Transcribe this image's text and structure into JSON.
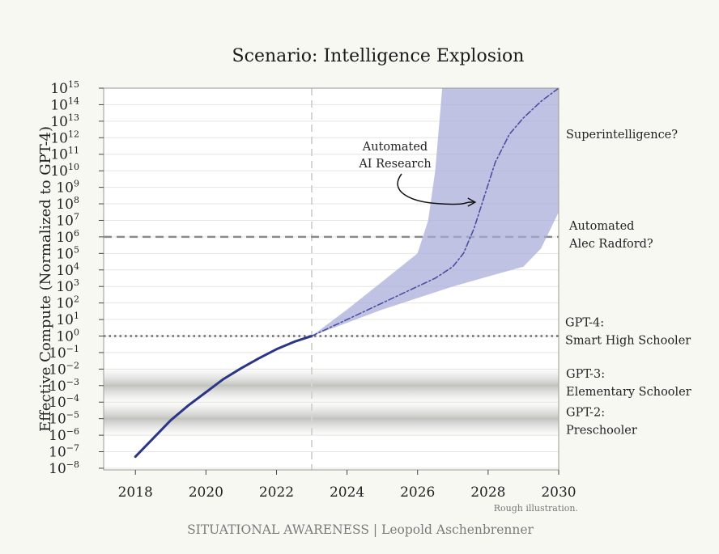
{
  "chart_data": {
    "type": "line",
    "title": "Scenario: Intelligence Explosion",
    "ylabel": "Effective Compute (Normalized to GPT-4)",
    "xlabel": "",
    "x_ticks": [
      "2018",
      "2020",
      "2022",
      "2024",
      "2026",
      "2028",
      "2030"
    ],
    "x_ticks_values": [
      2018,
      2020,
      2022,
      2024,
      2026,
      2028,
      2030
    ],
    "xlim": [
      2017.1,
      2030
    ],
    "y_scale": "log10",
    "y_ticks_exponents": [
      -8,
      -7,
      -6,
      -5,
      -4,
      -3,
      -2,
      -1,
      0,
      1,
      2,
      3,
      4,
      5,
      6,
      7,
      8,
      9,
      10,
      11,
      12,
      13,
      14,
      15
    ],
    "ylim_exponent": [
      -8.1,
      15
    ],
    "grid": "horizontal",
    "series": [
      {
        "style": "solid",
        "color": "#2b3686",
        "x": [
          2018,
          2018.5,
          2019,
          2019.5,
          2020,
          2020.5,
          2021,
          2021.5,
          2022,
          2022.5,
          2023
        ],
        "log10_y": [
          -7.3,
          -6.2,
          -5.1,
          -4.2,
          -3.4,
          -2.6,
          -1.95,
          -1.35,
          -0.8,
          -0.35,
          0
        ]
      },
      {
        "style": "dash-dot",
        "color": "#4b4fa0",
        "x": [
          2023,
          2024,
          2025,
          2026,
          2026.5,
          2027,
          2027.3,
          2027.6,
          2027.9,
          2028.2,
          2028.6,
          2029,
          2029.5,
          2030
        ],
        "log10_y": [
          0,
          1.0,
          2.0,
          3.0,
          3.5,
          4.2,
          5.0,
          6.5,
          8.5,
          10.5,
          12.2,
          13.2,
          14.2,
          15
        ]
      }
    ],
    "band": {
      "color": "#a8aad8",
      "x_upper": [
        2023,
        2024,
        2025,
        2026,
        2026.3,
        2026.5,
        2026.7
      ],
      "log10_upper": [
        0,
        1.6,
        3.3,
        5.0,
        7.0,
        10.0,
        15.0
      ],
      "x_upper_end": 2030,
      "x_lower": [
        2023,
        2024,
        2025,
        2026,
        2027,
        2028,
        2029,
        2029.5,
        2030
      ],
      "log10_lower": [
        0,
        0.8,
        1.6,
        2.3,
        3.0,
        3.6,
        4.2,
        5.3,
        7.5
      ]
    },
    "reference_lines": [
      {
        "log10_y": 6,
        "style": "dashed",
        "label_lines": [
          "Automated",
          "Alec Radford?"
        ]
      },
      {
        "log10_y": 0,
        "style": "dotted",
        "label_lines": [
          "GPT-4:",
          "Smart High Schooler"
        ]
      }
    ],
    "vertical_marker": {
      "x": 2023,
      "style": "dashed"
    },
    "shaded_bands": [
      {
        "log10_center": -3,
        "label_lines": [
          "GPT-3:",
          "Elementary Schooler"
        ]
      },
      {
        "log10_center": -5,
        "label_lines": [
          "GPT-2:",
          "Preschooler"
        ]
      }
    ],
    "annotations": [
      {
        "text_lines": [
          "Automated",
          "AI Research"
        ],
        "arrow_to": {
          "x": 2027.7,
          "log10_y": 8.1
        }
      },
      {
        "text_lines": [
          "Superintelligence?"
        ],
        "anchor": "right-margin",
        "log10_y": 12.2
      }
    ],
    "note": "Rough illustration.",
    "footer": "SITUATIONAL AWARENESS | Leopold Aschenbrenner"
  }
}
